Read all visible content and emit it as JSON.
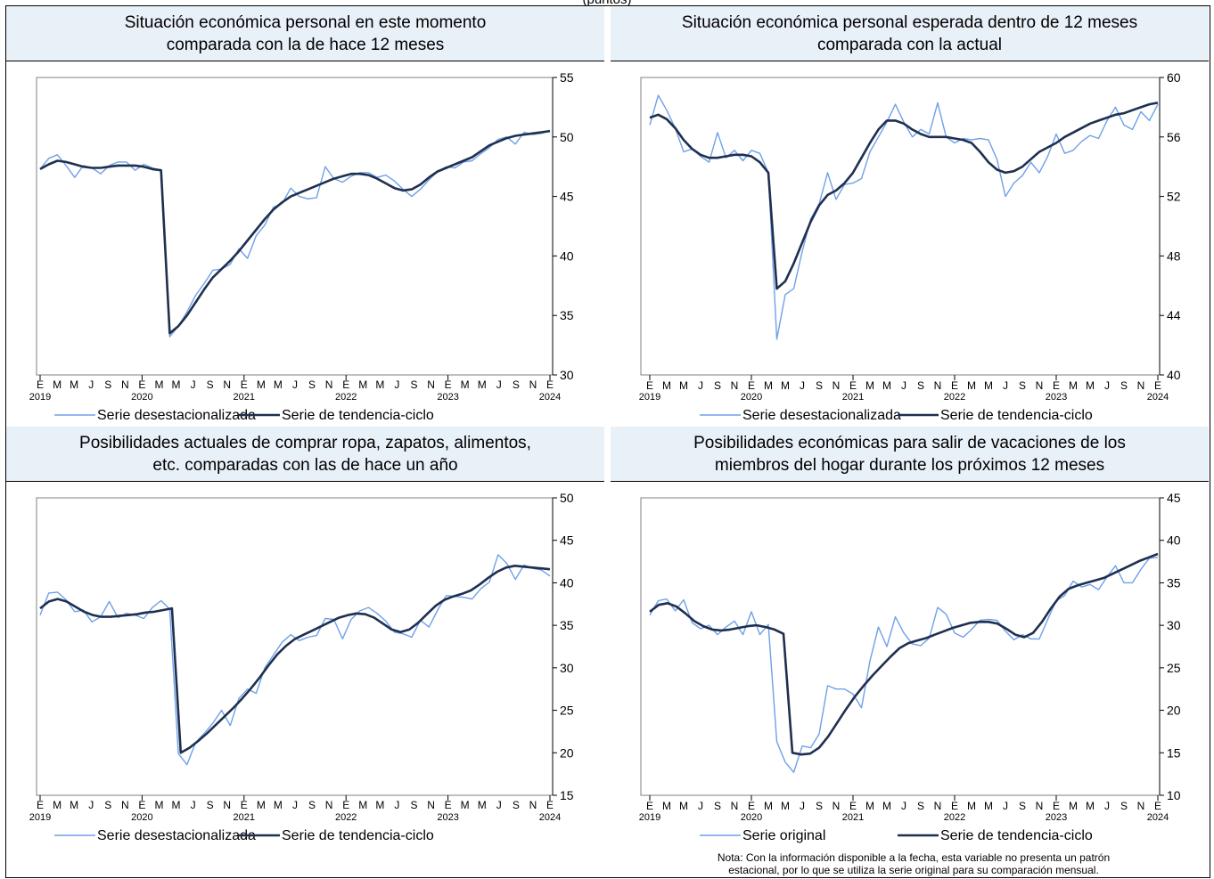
{
  "page_top": "(puntos)",
  "colors": {
    "series_a": "#6fa0e8",
    "series_b": "#1f2f4f",
    "title_bg": "#e8f0f8"
  },
  "note": {
    "line1": "Nota: Con la información disponible a la fecha, esta variable no presenta un patrón",
    "line2": "estacional, por lo que se utiliza la serie original para su comparación mensual."
  },
  "chart_data": [
    {
      "type": "line",
      "title_lines": [
        "Situación económica personal en este momento",
        "comparada con la de hace 12 meses"
      ],
      "ylim": [
        30,
        55
      ],
      "yticks": [
        30,
        35,
        40,
        45,
        50,
        55
      ],
      "month_labels": [
        "E",
        "M",
        "M",
        "J",
        "S",
        "N",
        "E",
        "M",
        "M",
        "J",
        "S",
        "N",
        "E",
        "M",
        "M",
        "J",
        "S",
        "N",
        "E",
        "M",
        "M",
        "J",
        "S",
        "N",
        "E",
        "M",
        "M",
        "J",
        "S",
        "N",
        "E"
      ],
      "year_labels": [
        "2019",
        "2020",
        "2021",
        "2022",
        "2023",
        "2024"
      ],
      "series": [
        {
          "name": "Serie desestacionalizada",
          "values": [
            47.3,
            48.2,
            48.5,
            47.6,
            46.6,
            47.6,
            47.4,
            46.9,
            47.6,
            47.9,
            47.9,
            47.2,
            47.7,
            47.4,
            47.2,
            33.2,
            34.1,
            35.3,
            36.7,
            37.7,
            38.8,
            38.9,
            39.3,
            40.6,
            39.8,
            41.7,
            42.6,
            44.1,
            44.4,
            45.7,
            45.0,
            44.8,
            44.9,
            47.5,
            46.5,
            46.2,
            46.7,
            47.0,
            47.0,
            46.6,
            46.8,
            46.3,
            45.6,
            45.0,
            45.6,
            46.4,
            47.1,
            47.5,
            47.4,
            47.9,
            48.0,
            48.6,
            49.1,
            49.8,
            50.0,
            49.4,
            50.4,
            50.2,
            50.3,
            50.5
          ]
        },
        {
          "name": "Serie de tendencia-ciclo",
          "values": [
            47.3,
            47.7,
            48.0,
            47.9,
            47.7,
            47.5,
            47.4,
            47.4,
            47.5,
            47.6,
            47.6,
            47.6,
            47.5,
            47.3,
            47.2,
            33.5,
            34.1,
            35.0,
            36.1,
            37.2,
            38.2,
            38.9,
            39.6,
            40.4,
            41.3,
            42.2,
            43.1,
            43.9,
            44.5,
            45.0,
            45.3,
            45.6,
            45.9,
            46.2,
            46.5,
            46.7,
            46.9,
            46.9,
            46.8,
            46.5,
            46.1,
            45.7,
            45.5,
            45.6,
            46.0,
            46.6,
            47.1,
            47.4,
            47.7,
            48.0,
            48.3,
            48.8,
            49.3,
            49.6,
            49.9,
            50.1,
            50.2,
            50.3,
            50.4,
            50.5
          ]
        }
      ]
    },
    {
      "type": "line",
      "title_lines": [
        "Situación económica personal esperada dentro de 12 meses",
        "comparada con la actual"
      ],
      "ylim": [
        40,
        60
      ],
      "yticks": [
        40,
        44,
        48,
        52,
        56,
        60
      ],
      "month_labels": [
        "E",
        "M",
        "M",
        "J",
        "S",
        "N",
        "E",
        "M",
        "M",
        "J",
        "S",
        "N",
        "E",
        "M",
        "M",
        "J",
        "S",
        "N",
        "E",
        "M",
        "M",
        "J",
        "S",
        "N",
        "E",
        "M",
        "M",
        "J",
        "S",
        "N",
        "E"
      ],
      "year_labels": [
        "2019",
        "2020",
        "2021",
        "2022",
        "2023",
        "2024"
      ],
      "series": [
        {
          "name": "Serie desestacionalizada",
          "values": [
            56.8,
            58.8,
            57.8,
            56.6,
            55.0,
            55.2,
            54.7,
            54.3,
            56.3,
            54.6,
            55.1,
            54.4,
            55.1,
            54.9,
            53.6,
            42.4,
            45.4,
            45.8,
            48.3,
            50.5,
            51.5,
            53.6,
            51.8,
            52.8,
            52.9,
            53.2,
            55.0,
            56.0,
            57.0,
            58.2,
            57.0,
            56.0,
            56.5,
            56.2,
            58.3,
            56.0,
            55.6,
            55.9,
            55.8,
            55.9,
            55.8,
            54.5,
            52.0,
            52.9,
            53.4,
            54.3,
            53.6,
            54.7,
            56.2,
            54.9,
            55.1,
            55.7,
            56.1,
            55.9,
            57.1,
            58.0,
            56.8,
            56.5,
            57.7,
            57.1,
            58.2
          ]
        },
        {
          "name": "Serie de tendencia-ciclo",
          "values": [
            57.3,
            57.5,
            57.2,
            56.6,
            55.8,
            55.2,
            54.8,
            54.6,
            54.6,
            54.7,
            54.8,
            54.8,
            54.7,
            54.3,
            53.6,
            45.8,
            46.3,
            47.5,
            48.9,
            50.3,
            51.4,
            52.1,
            52.4,
            52.9,
            53.6,
            54.6,
            55.6,
            56.5,
            57.1,
            57.1,
            56.9,
            56.5,
            56.2,
            56.0,
            56.0,
            56.0,
            55.9,
            55.8,
            55.6,
            55.0,
            54.3,
            53.8,
            53.6,
            53.7,
            54.0,
            54.5,
            55.0,
            55.3,
            55.6,
            56.0,
            56.3,
            56.6,
            56.9,
            57.1,
            57.3,
            57.5,
            57.6,
            57.8,
            58.0,
            58.2,
            58.3
          ]
        }
      ]
    },
    {
      "type": "line",
      "title_lines": [
        "Posibilidades actuales de comprar ropa, zapatos, alimentos,",
        "etc. comparadas con las de hace un año"
      ],
      "ylim": [
        15,
        50
      ],
      "yticks": [
        15,
        20,
        25,
        30,
        35,
        40,
        45,
        50
      ],
      "month_labels": [
        "E",
        "M",
        "M",
        "J",
        "S",
        "N",
        "E",
        "M",
        "M",
        "J",
        "S",
        "N",
        "E",
        "M",
        "M",
        "J",
        "S",
        "N",
        "E",
        "M",
        "M",
        "J",
        "S",
        "N",
        "E",
        "M",
        "M",
        "J",
        "S",
        "N",
        "E"
      ],
      "year_labels": [
        "2019",
        "2020",
        "2021",
        "2022",
        "2023",
        "2024"
      ],
      "series": [
        {
          "name": "Serie desestacionalizada",
          "values": [
            36.2,
            38.8,
            38.9,
            38.0,
            36.6,
            36.8,
            35.4,
            36.0,
            37.8,
            35.9,
            36.4,
            36.2,
            35.8,
            37.1,
            37.9,
            36.9,
            19.9,
            18.6,
            21.2,
            22.3,
            23.5,
            25.0,
            23.2,
            26.4,
            27.5,
            27.0,
            30.0,
            31.5,
            33.0,
            33.9,
            33.2,
            33.6,
            33.8,
            35.8,
            35.7,
            33.4,
            35.7,
            36.7,
            37.1,
            36.4,
            35.5,
            34.2,
            34.0,
            33.6,
            35.6,
            34.8,
            36.8,
            38.5,
            38.4,
            38.3,
            38.1,
            39.3,
            40.1,
            43.3,
            42.3,
            40.4,
            42.1,
            41.7,
            41.5,
            40.8
          ]
        },
        {
          "name": "Serie de tendencia-ciclo",
          "values": [
            37.0,
            37.8,
            38.1,
            37.8,
            37.2,
            36.6,
            36.2,
            36.0,
            36.0,
            36.1,
            36.2,
            36.3,
            36.5,
            36.6,
            36.8,
            37.0,
            20.0,
            20.6,
            21.4,
            22.3,
            23.3,
            24.3,
            25.3,
            26.4,
            27.6,
            28.9,
            30.3,
            31.6,
            32.6,
            33.4,
            33.9,
            34.4,
            34.9,
            35.4,
            35.9,
            36.2,
            36.4,
            36.3,
            35.9,
            35.2,
            34.5,
            34.2,
            34.5,
            35.3,
            36.3,
            37.3,
            38.0,
            38.4,
            38.7,
            39.1,
            39.8,
            40.6,
            41.3,
            41.8,
            42.0,
            41.9,
            41.8,
            41.7,
            41.6
          ]
        }
      ]
    },
    {
      "type": "line",
      "title_lines": [
        "Posibilidades económicas para salir de vacaciones de los",
        "miembros del hogar durante los próximos 12 meses"
      ],
      "ylim": [
        10,
        45
      ],
      "yticks": [
        10,
        15,
        20,
        25,
        30,
        35,
        40,
        45
      ],
      "month_labels": [
        "E",
        "M",
        "M",
        "J",
        "S",
        "N",
        "E",
        "M",
        "M",
        "J",
        "S",
        "N",
        "E",
        "M",
        "M",
        "J",
        "S",
        "N",
        "E",
        "M",
        "M",
        "J",
        "S",
        "N",
        "E",
        "M",
        "M",
        "J",
        "S",
        "N",
        "E"
      ],
      "year_labels": [
        "2019",
        "2020",
        "2021",
        "2022",
        "2023",
        "2024"
      ],
      "series": [
        {
          "name": "Serie original",
          "values": [
            31.2,
            32.9,
            33.1,
            31.7,
            33.0,
            30.3,
            29.6,
            30.0,
            28.9,
            29.8,
            30.5,
            28.9,
            31.6,
            28.9,
            30.1,
            16.3,
            13.9,
            12.7,
            15.8,
            15.6,
            17.2,
            22.9,
            22.5,
            22.5,
            21.9,
            20.3,
            25.8,
            29.8,
            27.5,
            31.0,
            29.1,
            27.8,
            27.6,
            28.5,
            32.1,
            31.3,
            29.1,
            28.6,
            29.5,
            30.6,
            30.7,
            30.6,
            29.3,
            28.3,
            28.9,
            28.4,
            28.4,
            30.7,
            32.9,
            33.5,
            35.2,
            34.5,
            34.8,
            34.2,
            35.7,
            37.0,
            35.0,
            35.0,
            36.6,
            37.9,
            38.0
          ]
        },
        {
          "name": "Serie de tendencia-ciclo",
          "values": [
            31.6,
            32.4,
            32.6,
            32.2,
            31.4,
            30.5,
            29.9,
            29.5,
            29.4,
            29.5,
            29.7,
            29.9,
            30.0,
            29.8,
            29.5,
            29.0,
            15.0,
            14.8,
            14.9,
            15.6,
            16.9,
            18.5,
            20.1,
            21.6,
            22.9,
            24.1,
            25.2,
            26.3,
            27.3,
            27.9,
            28.2,
            28.5,
            28.9,
            29.3,
            29.7,
            30.0,
            30.3,
            30.4,
            30.4,
            30.2,
            29.6,
            28.9,
            28.6,
            29.1,
            30.4,
            32.0,
            33.4,
            34.3,
            34.7,
            35.0,
            35.3,
            35.6,
            36.1,
            36.6,
            37.1,
            37.6,
            38.0,
            38.4
          ]
        }
      ]
    }
  ]
}
